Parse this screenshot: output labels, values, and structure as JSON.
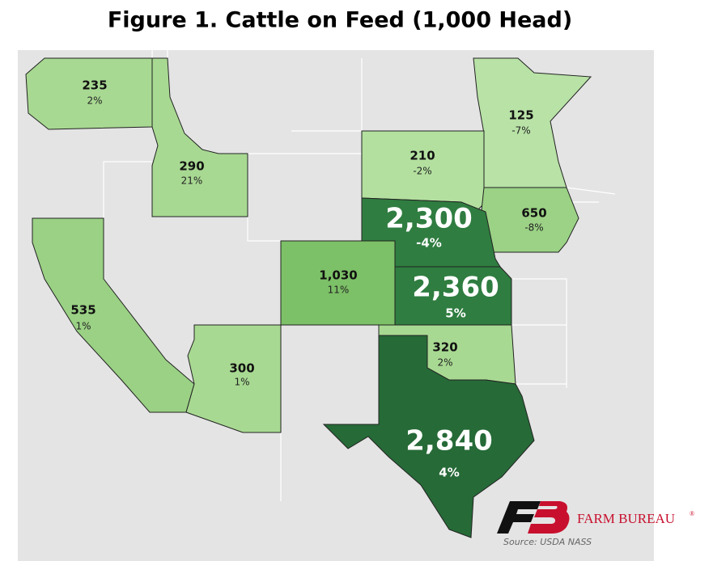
{
  "header": {
    "title": "Figure 1. Cattle on Feed (1,000 Head)"
  },
  "regions": [
    {
      "value": "235",
      "change": "2%",
      "color": "#a8d992"
    },
    {
      "value": "290",
      "change": "21%",
      "color": "#a8d992"
    },
    {
      "value": "125",
      "change": "-7%",
      "color": "#b8e2a6"
    },
    {
      "value": "210",
      "change": "-2%",
      "color": "#b3e09f"
    },
    {
      "value": "650",
      "change": "-8%",
      "color": "#9bd285"
    },
    {
      "value": "2,300",
      "change": "-4%",
      "color": "#2f7d40"
    },
    {
      "value": "1,030",
      "change": "11%",
      "color": "#7cc067"
    },
    {
      "value": "2,360",
      "change": "5%",
      "color": "#2f7d40"
    },
    {
      "value": "535",
      "change": "1%",
      "color": "#9ad184"
    },
    {
      "value": "300",
      "change": "1%",
      "color": "#a8d992"
    },
    {
      "value": "320",
      "change": "2%",
      "color": "#a8d992"
    },
    {
      "value": "2,840",
      "change": "4%",
      "color": "#266a37"
    }
  ],
  "logo": {
    "name": "FARM BUREAU",
    "mark": "®"
  },
  "source": "Source: USDA NASS"
}
